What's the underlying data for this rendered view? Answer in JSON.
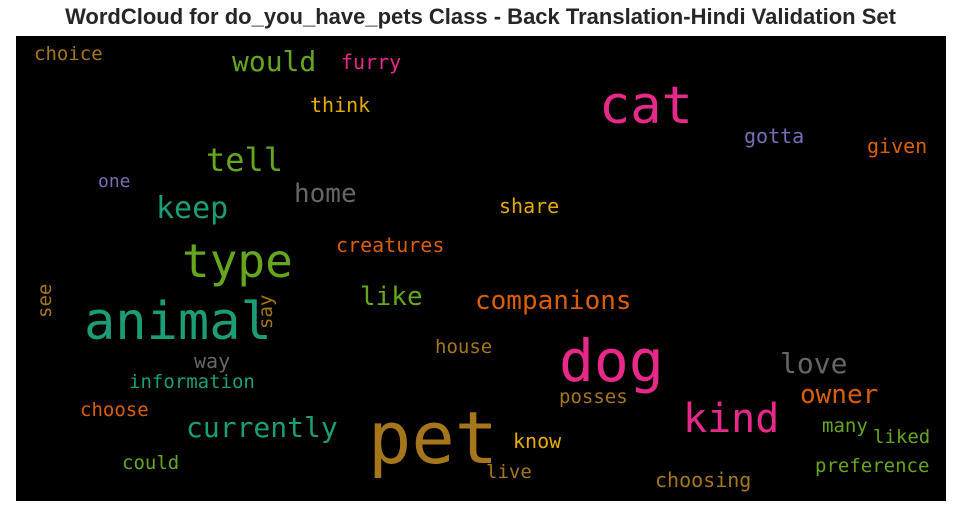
{
  "title": "WordCloud for do_you_have_pets Class - Back Translation-Hindi Validation Set",
  "words": {
    "cat": {
      "text": "cat",
      "color": "#e7298a"
    },
    "pet": {
      "text": "pet",
      "color": "#a6761d"
    },
    "dog": {
      "text": "dog",
      "color": "#e7298a"
    },
    "animal": {
      "text": "animal",
      "color": "#1b9e77"
    },
    "type": {
      "text": "type",
      "color": "#66a61e"
    },
    "kind": {
      "text": "kind",
      "color": "#e7298a"
    },
    "tell": {
      "text": "tell",
      "color": "#66a61e"
    },
    "keep": {
      "text": "keep",
      "color": "#1b9e77"
    },
    "companions": {
      "text": "companions",
      "color": "#d95f02"
    },
    "would": {
      "text": "would",
      "color": "#66a61e"
    },
    "home": {
      "text": "home",
      "color": "#666666"
    },
    "currently": {
      "text": "currently",
      "color": "#1b9e77"
    },
    "love": {
      "text": "love",
      "color": "#666666"
    },
    "owner": {
      "text": "owner",
      "color": "#d95f02"
    },
    "like": {
      "text": "like",
      "color": "#66a61e"
    },
    "furry": {
      "text": "furry",
      "color": "#e7298a"
    },
    "think": {
      "text": "think",
      "color": "#e6ab02"
    },
    "gotta": {
      "text": "gotta",
      "color": "#7570b3"
    },
    "given": {
      "text": "given",
      "color": "#d95f02"
    },
    "choice": {
      "text": "choice",
      "color": "#a6761d"
    },
    "one": {
      "text": "one",
      "color": "#7570b3"
    },
    "share": {
      "text": "share",
      "color": "#e6ab02"
    },
    "creatures": {
      "text": "creatures",
      "color": "#d95f02"
    },
    "see": {
      "text": "see",
      "color": "#a6761d"
    },
    "say": {
      "text": "say",
      "color": "#a6761d"
    },
    "way": {
      "text": "way",
      "color": "#666666"
    },
    "information": {
      "text": "information",
      "color": "#1b9e77"
    },
    "house": {
      "text": "house",
      "color": "#a6761d"
    },
    "choose": {
      "text": "choose",
      "color": "#d95f02"
    },
    "posses": {
      "text": "posses",
      "color": "#a6761d"
    },
    "know": {
      "text": "know",
      "color": "#e6ab02"
    },
    "many": {
      "text": "many",
      "color": "#66a61e"
    },
    "liked": {
      "text": "liked",
      "color": "#66a61e"
    },
    "could": {
      "text": "could",
      "color": "#66a61e"
    },
    "live": {
      "text": "live",
      "color": "#a6761d"
    },
    "preference": {
      "text": "preference",
      "color": "#66a61e"
    },
    "choosing": {
      "text": "choosing",
      "color": "#a6761d"
    }
  }
}
